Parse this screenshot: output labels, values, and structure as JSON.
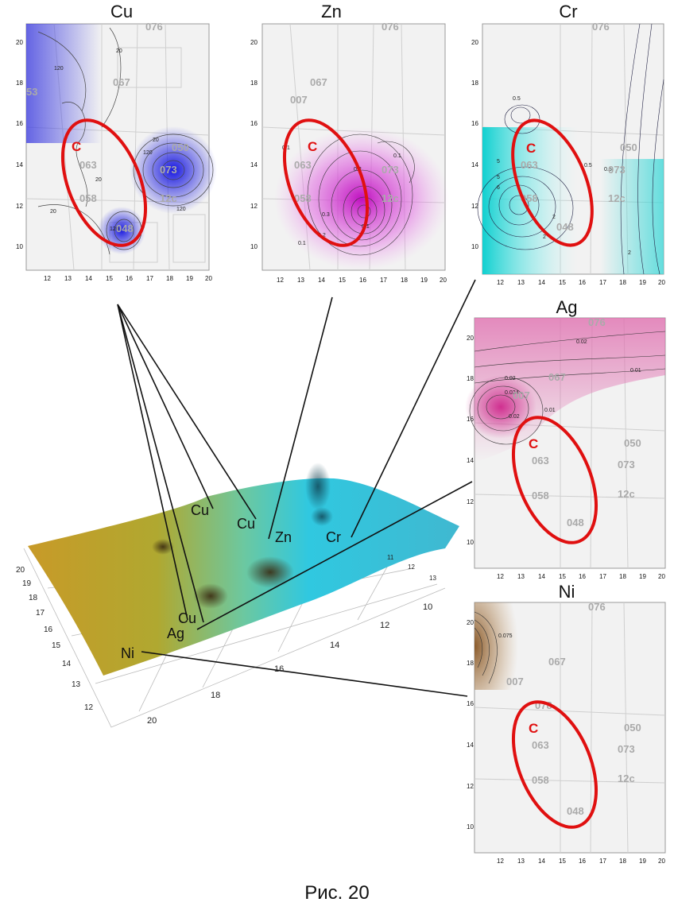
{
  "caption": "Рис. 20",
  "ellipse_label": "C",
  "map_labels": [
    "063",
    "058",
    "048",
    "073",
    "12c",
    "050",
    "067",
    "007",
    "076",
    "53",
    "078"
  ],
  "panels": [
    {
      "id": "cu",
      "title": "Cu",
      "color": "#3a3af0",
      "xticks": [
        "12",
        "13",
        "14",
        "15",
        "16",
        "17",
        "18",
        "19",
        "20"
      ],
      "yticks": [
        "10",
        "12",
        "14",
        "16",
        "18",
        "20"
      ],
      "contours": [
        "120",
        "20",
        "120",
        "20",
        "20",
        "120",
        "120",
        "20"
      ]
    },
    {
      "id": "zn",
      "title": "Zn",
      "color": "#d020c8",
      "xticks": [
        "12",
        "13",
        "14",
        "15",
        "16",
        "17",
        "18",
        "19",
        "20"
      ],
      "yticks": [
        "10",
        "12",
        "14",
        "16",
        "18",
        "20"
      ],
      "contours": [
        "0.1",
        "0.2",
        "0.3",
        "0.2",
        "0.1",
        "0.1",
        "0.1"
      ]
    },
    {
      "id": "cr",
      "title": "Cr",
      "color": "#20c8c8",
      "xticks": [
        "12",
        "13",
        "14",
        "15",
        "16",
        "17",
        "18",
        "19",
        "20"
      ],
      "yticks": [
        "10",
        "12",
        "14",
        "16",
        "18",
        "20"
      ],
      "contours": [
        "0.5",
        "0.5",
        "5",
        "5",
        "6",
        "2",
        "2",
        "0.5",
        "2"
      ]
    },
    {
      "id": "ag",
      "title": "Ag",
      "color": "#e060b0",
      "xticks": [
        "12",
        "13",
        "14",
        "15",
        "16",
        "17",
        "18",
        "19",
        "20"
      ],
      "yticks": [
        "10",
        "12",
        "14",
        "16",
        "18",
        "20"
      ],
      "contours": [
        "0.02",
        "0.01",
        "0.02",
        "0.024",
        "0.02",
        "0.01"
      ]
    },
    {
      "id": "ni",
      "title": "Ni",
      "color": "#8a5a2a",
      "xticks": [
        "12",
        "13",
        "14",
        "15",
        "16",
        "17",
        "18",
        "19",
        "20"
      ],
      "yticks": [
        "10",
        "12",
        "14",
        "16",
        "18",
        "20"
      ],
      "contours": [
        "0.075"
      ]
    }
  ],
  "surface": {
    "labels": [
      "Cu",
      "Cu",
      "Zn",
      "Cr",
      "Cu",
      "Ag",
      "Ni"
    ],
    "x_ticks": [
      "20",
      "18",
      "16",
      "14",
      "12",
      "10"
    ],
    "y_ticks": [
      "20",
      "19",
      "18",
      "17",
      "16",
      "15",
      "14",
      "13",
      "12"
    ],
    "right_ticks": [
      "13",
      "12",
      "11",
      "10"
    ]
  }
}
